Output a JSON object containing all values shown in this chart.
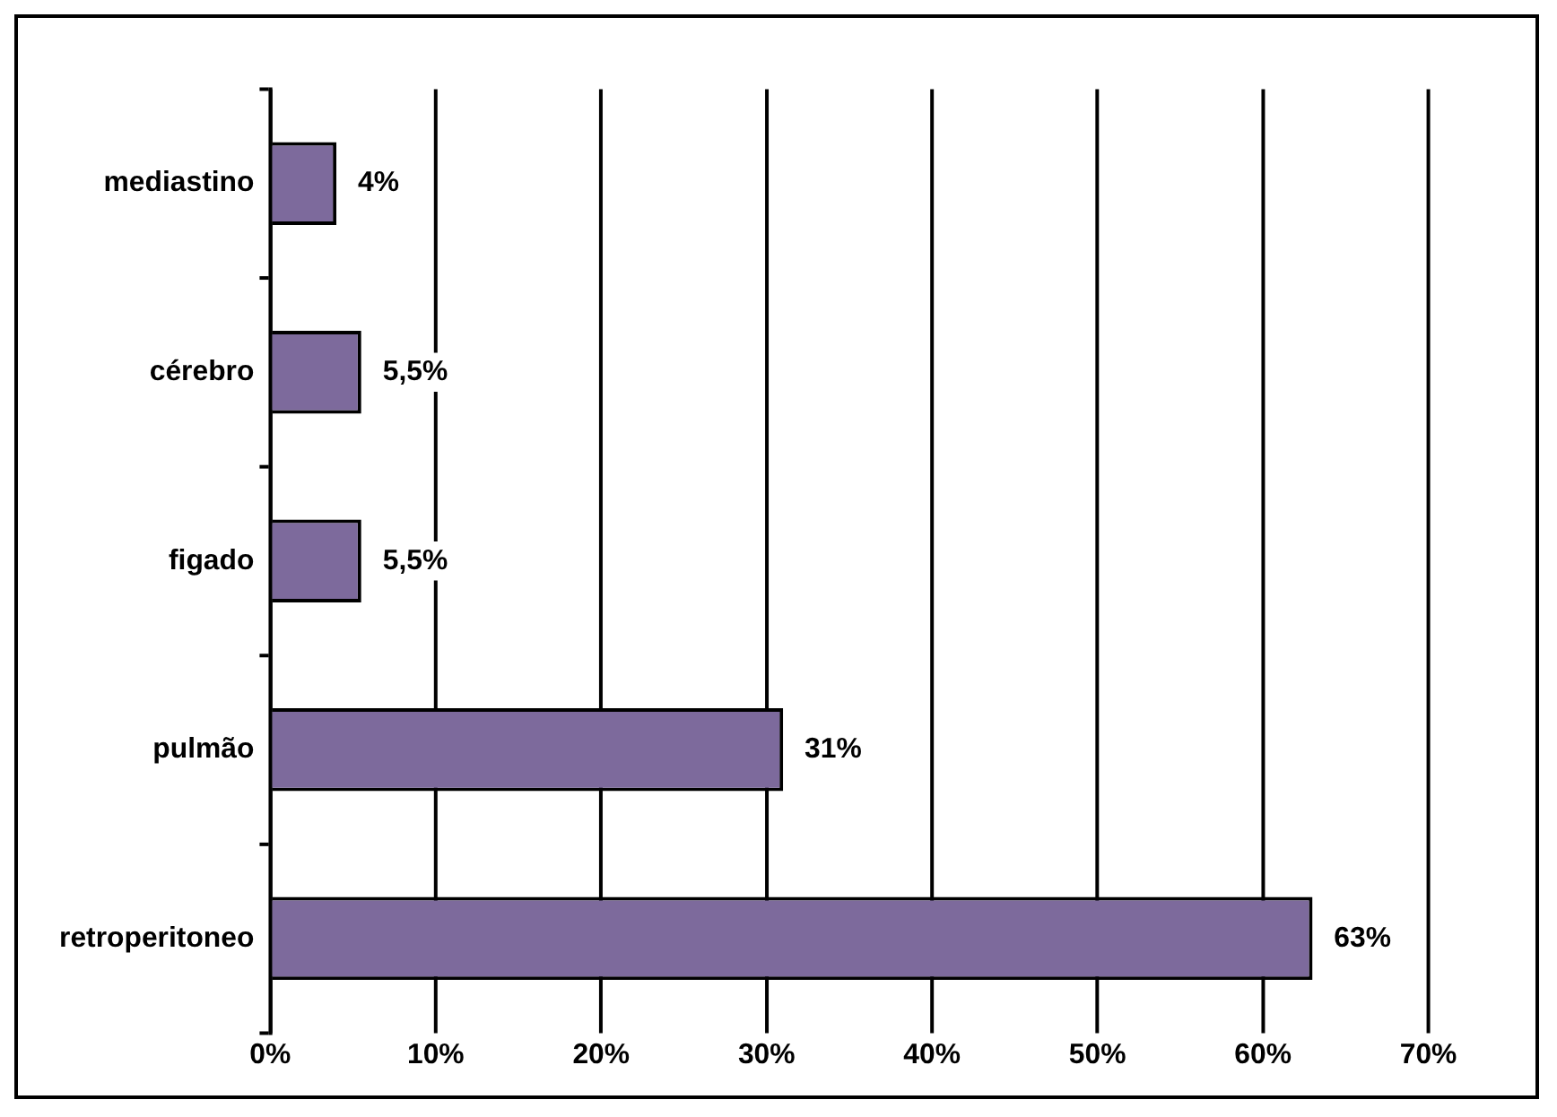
{
  "chart_data": {
    "type": "bar",
    "orientation": "horizontal",
    "categories": [
      "mediastino",
      "cérebro",
      "figado",
      "pulmão",
      "retroperitoneo"
    ],
    "values": [
      4,
      5.5,
      5.5,
      31,
      63
    ],
    "value_labels": [
      "4%",
      "5,5%",
      "5,5%",
      "31%",
      "63%"
    ],
    "color": "#7d6a9c",
    "xlim": [
      0,
      70
    ],
    "xticks": [
      {
        "value": 0,
        "label": "0%"
      },
      {
        "value": 10,
        "label": "10%"
      },
      {
        "value": 20,
        "label": "20%"
      },
      {
        "value": 30,
        "label": "30%"
      },
      {
        "value": 40,
        "label": "40%"
      },
      {
        "value": 50,
        "label": "50%"
      },
      {
        "value": 60,
        "label": "60%"
      },
      {
        "value": 70,
        "label": "70%"
      }
    ],
    "grid": "x",
    "legend": false
  }
}
